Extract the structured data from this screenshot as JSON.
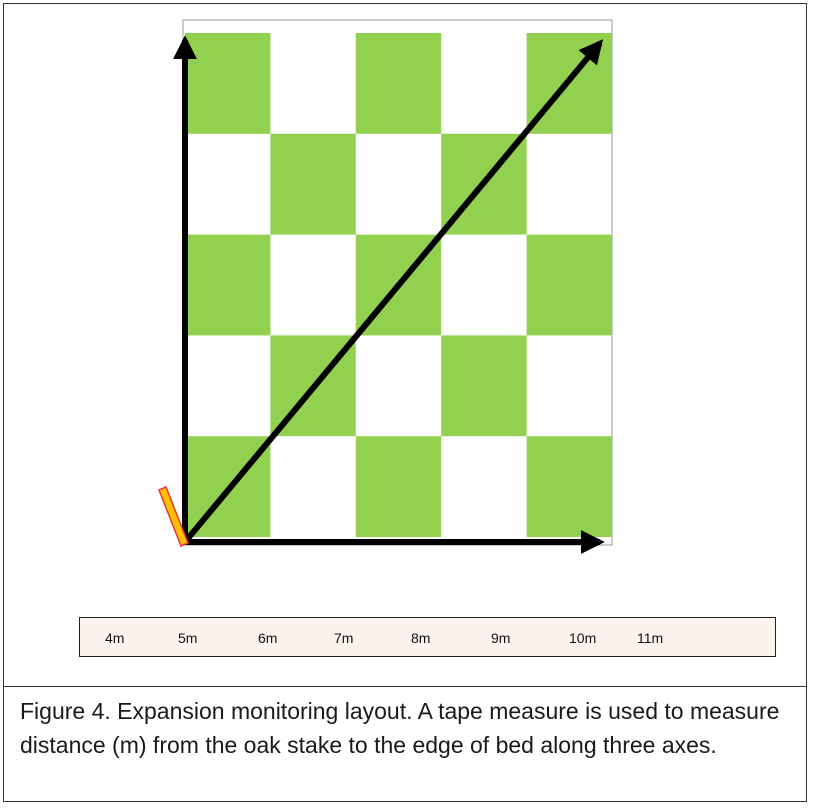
{
  "diagram": {
    "grid": {
      "rows": 5,
      "cols": 5,
      "pattern_start": "green"
    },
    "colors": {
      "green": "#92d050",
      "white": "#ffffff",
      "arrow": "#000000",
      "stake_fill": "#ffc000",
      "stake_stroke": "#e53935",
      "tape_bg": "#fdf3ee"
    },
    "axes": [
      "vertical",
      "horizontal",
      "diagonal"
    ],
    "stake_icon": "oak-stake-icon"
  },
  "tape": {
    "ticks": [
      "4m",
      "5m",
      "6m",
      "7m",
      "8m",
      "9m",
      "10m",
      "11m"
    ]
  },
  "caption": {
    "text": "Figure 4. Expansion monitoring layout. A tape measure is used to measure distance (m) from the oak stake to the edge of bed along three axes."
  }
}
